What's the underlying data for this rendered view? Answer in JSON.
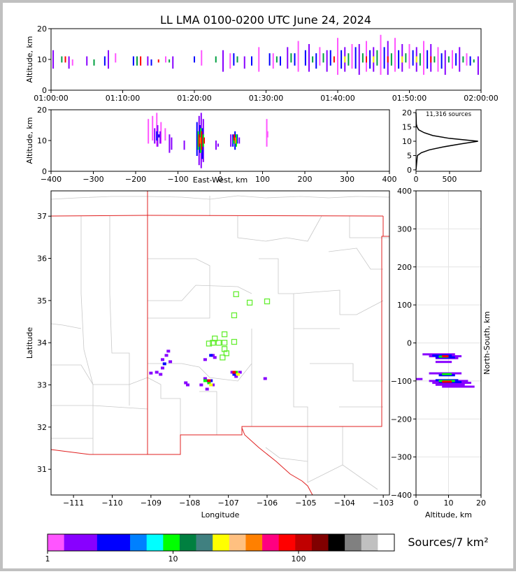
{
  "chart_data": [
    {
      "type": "range",
      "title": "LL LMA 0100-0200 UTC June 24, 2024",
      "ylabel": "Altitude, km",
      "xlim": [
        0,
        60
      ],
      "xticks": [
        {
          "value": 0,
          "label": "01:00:00"
        },
        {
          "value": 10,
          "label": "01:10:00"
        },
        {
          "value": 20,
          "label": "01:20:00"
        },
        {
          "value": 30,
          "label": "01:30:00"
        },
        {
          "value": 40,
          "label": "01:40:00"
        },
        {
          "value": 50,
          "label": "01:50:00"
        },
        {
          "value": 60,
          "label": "02:00:00"
        }
      ],
      "ylim": [
        0,
        20
      ],
      "yticks": [
        0,
        10,
        20
      ],
      "series": [
        {
          "color": "#8800ff",
          "x": [
            0.3,
            2.5,
            5,
            8,
            13.5,
            17,
            24,
            27,
            33,
            36,
            38.5,
            41,
            43,
            45,
            47,
            49,
            51,
            53,
            55,
            57,
            59.6
          ],
          "low": [
            7,
            7,
            8,
            7,
            8,
            7,
            6,
            7,
            7,
            6,
            6,
            6,
            5,
            6,
            5,
            6,
            6,
            6,
            5,
            6,
            5
          ],
          "high": [
            13,
            11,
            11,
            13,
            11,
            11,
            13,
            11,
            14,
            15,
            13,
            14,
            15,
            14,
            16,
            15,
            14,
            15,
            13,
            14,
            11
          ]
        },
        {
          "color": "#ff55ff",
          "x": [
            3,
            9,
            16,
            21,
            25,
            29,
            31,
            34.5,
            37.5,
            40,
            42,
            44,
            46,
            48,
            50,
            52,
            54,
            56,
            58
          ],
          "low": [
            8,
            9,
            9,
            8,
            7,
            6,
            7,
            6,
            8,
            5,
            7,
            6,
            5,
            6,
            7,
            5,
            6,
            7,
            8
          ],
          "high": [
            10,
            12,
            11,
            13,
            12,
            14,
            12,
            16,
            14,
            17,
            15,
            16,
            18,
            17,
            15,
            16,
            14,
            13,
            12
          ]
        },
        {
          "color": "#0000ff",
          "x": [
            7.5,
            11.5,
            14,
            20,
            25.5,
            28,
            30.5,
            32,
            34,
            35.5,
            37,
            39,
            40.5,
            42.5,
            44.5,
            46.5,
            48.5,
            50.5,
            52.5,
            54.5,
            56.5,
            58.5
          ],
          "low": [
            8,
            8,
            8,
            9,
            8,
            8,
            8,
            8,
            8,
            8,
            7,
            8,
            7,
            7,
            7,
            7,
            7,
            8,
            7,
            7,
            8,
            8
          ],
          "high": [
            11,
            11,
            10,
            11,
            12,
            11,
            12,
            11,
            12,
            13,
            12,
            13,
            13,
            14,
            13,
            14,
            13,
            13,
            13,
            12,
            12,
            11
          ]
        },
        {
          "color": "#00a040",
          "x": [
            1.5,
            6,
            12,
            16.5,
            23,
            26,
            31.5,
            33.5,
            36.5,
            38,
            41.5,
            43.5,
            45.5,
            47.5,
            49.5,
            51.5,
            53.5,
            55.5,
            57.5,
            59
          ],
          "low": [
            9,
            8,
            8,
            9,
            9,
            9,
            9,
            9,
            9,
            9,
            8,
            9,
            8,
            8,
            9,
            8,
            9,
            9,
            9,
            9
          ],
          "high": [
            11,
            10,
            11,
            10,
            11,
            11,
            11,
            12,
            11,
            12,
            12,
            12,
            13,
            12,
            12,
            12,
            11,
            11,
            11,
            10
          ]
        },
        {
          "color": "#ff0000",
          "x": [
            2,
            12.5,
            15,
            39.5,
            44,
            47,
            53
          ],
          "low": [
            9,
            8,
            9,
            9,
            9,
            9,
            9
          ],
          "high": [
            11,
            11,
            10,
            11,
            11,
            11,
            11
          ]
        },
        {
          "color": "#ffff00",
          "x": [
            41,
            45,
            49,
            51
          ],
          "low": [
            9,
            9,
            9,
            9
          ],
          "high": [
            11,
            11,
            11,
            11
          ]
        }
      ]
    },
    {
      "type": "range",
      "xlabel": "East-West, km",
      "ylabel": "Altitude, km",
      "xlim": [
        -400,
        400
      ],
      "xticks": [
        {
          "value": -400,
          "label": "−400"
        },
        {
          "value": -300,
          "label": "−300"
        },
        {
          "value": -200,
          "label": "−200"
        },
        {
          "value": -100,
          "label": "−100"
        },
        0,
        100,
        200,
        300,
        400
      ],
      "ylim": [
        0,
        20
      ],
      "yticks": [
        0,
        10,
        20
      ],
      "series": [
        {
          "color": "#ff55ff",
          "x": [
            -170,
            -160,
            -150,
            -140,
            -130,
            110,
            112
          ],
          "low": [
            9,
            10,
            8,
            9,
            10,
            8,
            11
          ],
          "high": [
            17,
            18,
            19,
            16,
            14,
            17,
            13
          ]
        },
        {
          "color": "#8800ff",
          "x": [
            -155,
            -148,
            -142,
            -120,
            -115,
            -85,
            -50,
            -45,
            -40,
            -10,
            -5,
            25,
            45
          ],
          "low": [
            9,
            8,
            9,
            6,
            7,
            7,
            2,
            1,
            3,
            7,
            8,
            8,
            9
          ],
          "high": [
            14,
            15,
            13,
            12,
            11,
            10,
            18,
            19,
            17,
            10,
            9,
            12,
            11
          ]
        },
        {
          "color": "#0000ff",
          "x": [
            -150,
            -145,
            -55,
            -48,
            -42,
            30,
            35,
            40
          ],
          "low": [
            10,
            11,
            5,
            6,
            4,
            8,
            7,
            9
          ],
          "high": [
            13,
            12,
            16,
            15,
            14,
            12,
            13,
            12
          ]
        },
        {
          "color": "#00ff00",
          "x": [
            -52,
            -46,
            -40,
            32,
            38
          ],
          "low": [
            7,
            6,
            8,
            9,
            8
          ],
          "high": [
            13,
            14,
            12,
            11,
            12
          ]
        },
        {
          "color": "#ff0000",
          "x": [
            -50,
            -44,
            -38,
            33
          ],
          "low": [
            8,
            7,
            9,
            10
          ],
          "high": [
            12,
            13,
            11,
            12
          ]
        },
        {
          "color": "#ff8000",
          "x": [
            -47,
            36
          ],
          "low": [
            9,
            9
          ],
          "high": [
            11,
            11
          ]
        }
      ]
    },
    {
      "type": "line",
      "annotation": "11,316 sources",
      "color": "#000000",
      "xlim": [
        0,
        970
      ],
      "xticks": [
        0,
        500
      ],
      "ylim": [
        -0.5,
        21
      ],
      "yticks": [
        0,
        5,
        10,
        15,
        20
      ],
      "x": [
        0,
        20,
        80,
        200,
        400,
        650,
        925,
        500,
        250,
        120,
        40,
        15,
        5,
        0
      ],
      "y": [
        0,
        5,
        6,
        7,
        8,
        9,
        10,
        11,
        12,
        13,
        14,
        15,
        16,
        20
      ]
    },
    {
      "type": "scatter",
      "xlabel": "Longitude",
      "ylabel": "Latitude",
      "xlim": [
        -111.58,
        -102.84
      ],
      "xticks": [
        {
          "value": -111,
          "label": "−111"
        },
        {
          "value": -110,
          "label": "−110"
        },
        {
          "value": -109,
          "label": "−109"
        },
        {
          "value": -108,
          "label": "−108"
        },
        {
          "value": -107,
          "label": "−107"
        },
        {
          "value": -106,
          "label": "−106"
        },
        {
          "value": -105,
          "label": "−105"
        },
        {
          "value": -104,
          "label": "−104"
        },
        {
          "value": -103,
          "label": "−103"
        }
      ],
      "ylim": [
        30.39,
        37.6
      ],
      "yticks": [
        31,
        32,
        33,
        34,
        35,
        36,
        37
      ],
      "series": [
        {
          "color": "#8800ff",
          "x": [
            -108.55,
            -108.6,
            -108.7,
            -108.5,
            -108.7,
            -108.85,
            -108.75,
            -109,
            -108.1,
            -108.05,
            -107.6,
            -107.4,
            -107.35,
            -107.6,
            -107.5,
            -107.7,
            -107.4,
            -107.55,
            -106.9,
            -106.7,
            -106.8,
            -106.05
          ],
          "y": [
            33.8,
            33.7,
            33.6,
            33.55,
            33.4,
            33.3,
            33.25,
            33.28,
            33.05,
            33.0,
            33.6,
            33.7,
            33.65,
            33.15,
            33.05,
            33.0,
            33.0,
            32.9,
            33.3,
            33.3,
            33.2,
            33.15
          ]
        },
        {
          "color": "#0000ff",
          "x": [
            -108.65,
            -107.55,
            -107.45,
            -106.85,
            -107.45
          ],
          "y": [
            33.5,
            33.1,
            33.1,
            33.25,
            33.7
          ]
        },
        {
          "color": "#00ff00",
          "x": [
            -107.5,
            -106.8,
            -107.6
          ],
          "y": [
            33.05,
            33.3,
            33.1
          ]
        },
        {
          "color": "#ff0000",
          "x": [
            -107.5,
            -106.85
          ],
          "y": [
            33.1,
            33.3
          ]
        },
        {
          "color": "#ffff00",
          "x": [
            -107.45,
            -106.75
          ],
          "y": [
            33.0,
            33.25
          ]
        },
        {
          "color": "#66ee33",
          "marker": "square",
          "x": [
            -106.8,
            -106.45,
            -106.0,
            -106.85,
            -107.1,
            -107.35,
            -107.4,
            -107.25,
            -107.1,
            -106.85,
            -107.1,
            -107.05,
            -107.15,
            -107.5
          ],
          "y": [
            35.15,
            34.95,
            34.98,
            34.65,
            34.2,
            34.1,
            34.0,
            34.0,
            34.0,
            34.02,
            33.85,
            33.75,
            33.65,
            33.98
          ]
        }
      ]
    },
    {
      "type": "hrange",
      "xlabel": "Altitude, km",
      "ylabel": "North-South, km",
      "grid": true,
      "xlim": [
        0,
        20
      ],
      "xticks": [
        0,
        10,
        20
      ],
      "ylim": [
        -400,
        400
      ],
      "yticks": [
        {
          "value": -400,
          "label": "−400"
        },
        {
          "value": -300,
          "label": "−300"
        },
        {
          "value": -200,
          "label": "−200"
        },
        {
          "value": -100,
          "label": "−100"
        },
        0,
        100,
        200,
        300,
        400
      ],
      "series": [
        {
          "color": "#8800ff",
          "y": [
            -30,
            -35,
            -40,
            -50,
            -80,
            -95,
            -100,
            -105,
            -110,
            -115
          ],
          "low": [
            2,
            4,
            6,
            6,
            4,
            0,
            4,
            5,
            6,
            8
          ],
          "high": [
            12,
            14,
            13,
            11,
            14,
            2,
            16,
            17,
            15,
            18
          ]
        },
        {
          "color": "#0000ff",
          "y": [
            -33,
            -38,
            -85,
            -98,
            -103
          ],
          "low": [
            5,
            6,
            7,
            6,
            7
          ],
          "high": [
            11,
            12,
            12,
            13,
            14
          ]
        },
        {
          "color": "#00ff00",
          "y": [
            -36,
            -82,
            -100
          ],
          "low": [
            7,
            8,
            7
          ],
          "high": [
            10,
            11,
            12
          ]
        },
        {
          "color": "#ff0000",
          "y": [
            -35,
            -102
          ],
          "low": [
            8,
            8
          ],
          "high": [
            10,
            11
          ]
        }
      ]
    },
    {
      "type": "colorbar",
      "label": "Sources/7 km²",
      "log": true,
      "xlim": [
        1,
        580
      ],
      "xticks": [
        1,
        10,
        100
      ],
      "colors": [
        "#ff55ff",
        "#8800ff",
        "#8800ff",
        "#0000ff",
        "#0000ff",
        "#0080ff",
        "#00ffff",
        "#00ff00",
        "#008040",
        "#408080",
        "#ffff00",
        "#ffc080",
        "#ff8000",
        "#ff0080",
        "#ff0000",
        "#c00000",
        "#800000",
        "#000000",
        "#808080",
        "#c0c0c0",
        "#ffffff"
      ]
    }
  ]
}
